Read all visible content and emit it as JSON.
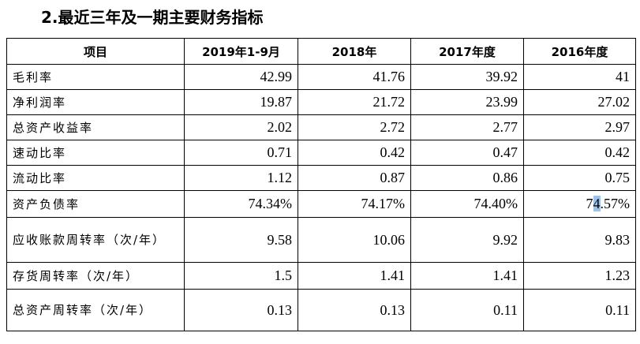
{
  "title": "2.最近三年及一期主要财务指标",
  "table": {
    "headers": [
      "项目",
      "2019年1-9月",
      "2018年",
      "2017年度",
      "2016年度"
    ],
    "rows": [
      {
        "label": "毛利率",
        "values": [
          "42.99",
          "41.76",
          "39.92",
          "41"
        ]
      },
      {
        "label": "净利润率",
        "values": [
          "19.87",
          "21.72",
          "23.99",
          "27.02"
        ]
      },
      {
        "label": "总资产收益率",
        "values": [
          "2.02",
          "2.72",
          "2.77",
          "2.97"
        ]
      },
      {
        "label": "速动比率",
        "values": [
          "0.71",
          "0.42",
          "0.47",
          "0.42"
        ]
      },
      {
        "label": "流动比率",
        "values": [
          "1.12",
          "0.87",
          "0.86",
          "0.75"
        ]
      },
      {
        "label": "资产负债率",
        "values": [
          "74.34%",
          "74.17%",
          "74.40%",
          "74.57%"
        ]
      },
      {
        "label": "应收账款周转率（次/年）",
        "values": [
          "9.58",
          "10.06",
          "9.92",
          "9.83"
        ]
      },
      {
        "label": "存货周转率（次/年）",
        "values": [
          "1.5",
          "1.41",
          "1.41",
          "1.23"
        ]
      },
      {
        "label": "总资产周转率（次/年）",
        "values": [
          "0.13",
          "0.13",
          "0.11",
          "0.11"
        ]
      }
    ]
  }
}
